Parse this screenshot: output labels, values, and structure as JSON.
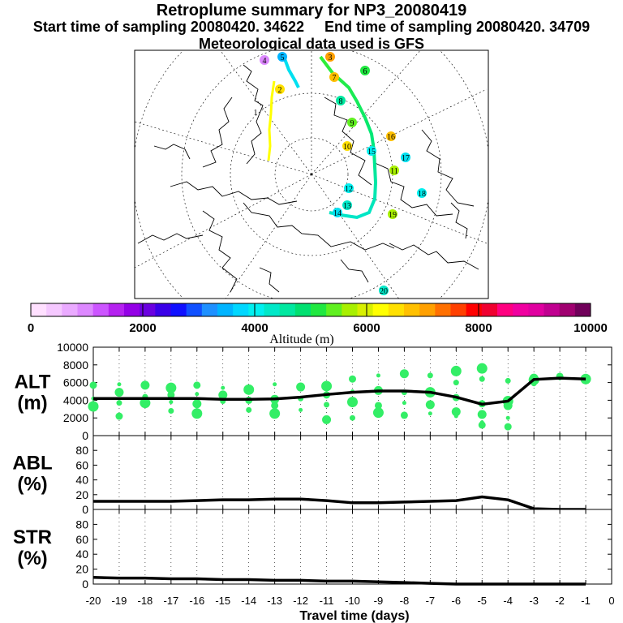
{
  "header": {
    "title": "Retroplume summary for NP3_20080419",
    "start_label": "Start time of sampling 20080420. 34622",
    "end_label": "End time of sampling 20080420. 34709",
    "met_label": "Meteorological data used is GFS"
  },
  "colorbar": {
    "label": "Altitude (m)",
    "ticks": [
      "0",
      "2000",
      "4000",
      "6000",
      "8000",
      "10000"
    ],
    "range": [
      0,
      10000
    ],
    "colors": [
      "#ffe0ff",
      "#f5c8ff",
      "#eaaaff",
      "#dd88ff",
      "#cc55ff",
      "#b522f0",
      "#9400e6",
      "#6a00e0",
      "#3a00e8",
      "#1010ff",
      "#1050ff",
      "#1e90ff",
      "#00b4ff",
      "#00d7ff",
      "#00f0f0",
      "#00e8c8",
      "#00e8a0",
      "#00e070",
      "#20e840",
      "#60f020",
      "#a8f000",
      "#d8f000",
      "#ffff00",
      "#ffe000",
      "#ffc000",
      "#ffa000",
      "#ff7000",
      "#ff4000",
      "#ff0000",
      "#f00030",
      "#ff0080",
      "#f000a0",
      "#e000a0",
      "#c00090",
      "#a00070",
      "#70005a"
    ]
  },
  "map": {
    "day_labels": [
      "1",
      "2",
      "3",
      "4",
      "5",
      "6",
      "7",
      "8",
      "9",
      "10",
      "11",
      "12",
      "13",
      "14",
      "15",
      "16",
      "17",
      "18",
      "19",
      "20"
    ],
    "trajectory_colors": [
      "#ffff00",
      "#00e0f0",
      "#00e878",
      "#33ee33",
      "#00e6c8"
    ]
  },
  "chart_data": [
    {
      "type": "scatter",
      "name": "ALT",
      "ylabel": "ALT (m)",
      "ylabel_lines": [
        "ALT",
        "(m)"
      ],
      "ylim": [
        0,
        10000
      ],
      "yticks": [
        "0",
        "2000",
        "4000",
        "6000",
        "8000",
        "10000"
      ],
      "x": [
        -20,
        -19,
        -18,
        -17,
        -16,
        -15,
        -14,
        -13,
        -12,
        -11,
        -10,
        -9,
        -8,
        -7,
        -6,
        -5,
        -4,
        -3,
        -2,
        -1
      ],
      "mean_line": [
        4200,
        4200,
        4200,
        4200,
        4200,
        4100,
        4100,
        4150,
        4350,
        4650,
        4900,
        5050,
        5050,
        4900,
        4350,
        3550,
        3900,
        6350,
        6500,
        6400
      ],
      "cluster_points": [
        [
          -20,
          4200
        ],
        [
          -20,
          5700
        ],
        [
          -20,
          3300
        ],
        [
          -19,
          3700
        ],
        [
          -19,
          4900
        ],
        [
          -19,
          5800
        ],
        [
          -19,
          2200
        ],
        [
          -18,
          3700
        ],
        [
          -18,
          4400
        ],
        [
          -18,
          5700
        ],
        [
          -17,
          3800
        ],
        [
          -17,
          4600
        ],
        [
          -17,
          5400
        ],
        [
          -17,
          2800
        ],
        [
          -16,
          3600
        ],
        [
          -16,
          4700
        ],
        [
          -16,
          5700
        ],
        [
          -16,
          2500
        ],
        [
          -15,
          3900
        ],
        [
          -15,
          4600
        ],
        [
          -15,
          5400
        ],
        [
          -14,
          4000
        ],
        [
          -14,
          5200
        ],
        [
          -14,
          2900
        ],
        [
          -13,
          4100
        ],
        [
          -13,
          5800
        ],
        [
          -13,
          3400
        ],
        [
          -13,
          2500
        ],
        [
          -12,
          4200
        ],
        [
          -12,
          5500
        ],
        [
          -12,
          2900
        ],
        [
          -11,
          4600
        ],
        [
          -11,
          5600
        ],
        [
          -11,
          3500
        ],
        [
          -11,
          1800
        ],
        [
          -10,
          5000
        ],
        [
          -10,
          6400
        ],
        [
          -10,
          3800
        ],
        [
          -10,
          2000
        ],
        [
          -9,
          5100
        ],
        [
          -9,
          6800
        ],
        [
          -9,
          3400
        ],
        [
          -9,
          2600
        ],
        [
          -8,
          4900
        ],
        [
          -8,
          7000
        ],
        [
          -8,
          3700
        ],
        [
          -8,
          2300
        ],
        [
          -7,
          4900
        ],
        [
          -7,
          6800
        ],
        [
          -7,
          3500
        ],
        [
          -7,
          2500
        ],
        [
          -6,
          4300
        ],
        [
          -6,
          7300
        ],
        [
          -6,
          6000
        ],
        [
          -6,
          2700
        ],
        [
          -6,
          2200
        ],
        [
          -5,
          3600
        ],
        [
          -5,
          7600
        ],
        [
          -5,
          6400
        ],
        [
          -5,
          2400
        ],
        [
          -5,
          1500
        ],
        [
          -5,
          1200
        ],
        [
          -4,
          3900
        ],
        [
          -4,
          6200
        ],
        [
          -4,
          3400
        ],
        [
          -4,
          2000
        ],
        [
          -4,
          1000
        ],
        [
          -3,
          6300
        ],
        [
          -3,
          5900
        ],
        [
          -3,
          6500
        ],
        [
          -2,
          6500
        ],
        [
          -2,
          6700
        ],
        [
          -1,
          6400
        ],
        [
          -1,
          6300
        ]
      ]
    },
    {
      "type": "line",
      "name": "ABL",
      "ylabel": "ABL (%)",
      "ylabel_lines": [
        "ABL",
        "(%)"
      ],
      "ylim": [
        0,
        100
      ],
      "yticks": [
        "0",
        "20",
        "40",
        "60",
        "80"
      ],
      "x": [
        -20,
        -19,
        -18,
        -17,
        -16,
        -15,
        -14,
        -13,
        -12,
        -11,
        -10,
        -9,
        -8,
        -7,
        -6,
        -5,
        -4,
        -3,
        -2,
        -1
      ],
      "values": [
        11,
        11,
        11,
        11,
        12,
        13,
        13,
        14,
        14,
        12,
        9,
        9,
        10,
        11,
        12,
        17,
        13,
        1,
        0,
        0
      ]
    },
    {
      "type": "line",
      "name": "STR",
      "ylabel": "STR (%)",
      "ylabel_lines": [
        "STR",
        "(%)"
      ],
      "ylim": [
        0,
        100
      ],
      "yticks": [
        "0",
        "20",
        "40",
        "60",
        "80"
      ],
      "x": [
        -20,
        -19,
        -18,
        -17,
        -16,
        -15,
        -14,
        -13,
        -12,
        -11,
        -10,
        -9,
        -8,
        -7,
        -6,
        -5,
        -4,
        -3,
        -2,
        -1
      ],
      "values": [
        9,
        8,
        8,
        7,
        7,
        6,
        6,
        5,
        5,
        4,
        4,
        3,
        2,
        1,
        0,
        0,
        0,
        0,
        0,
        0
      ]
    }
  ],
  "x_axis": {
    "label": "Travel time (days)",
    "xlim": [
      -20,
      0
    ],
    "ticks": [
      "-20",
      "-19",
      "-18",
      "-17",
      "-16",
      "-15",
      "-14",
      "-13",
      "-12",
      "-11",
      "-10",
      "-9",
      "-8",
      "-7",
      "-6",
      "-5",
      "-4",
      "-3",
      "-2",
      "-1",
      "0"
    ]
  }
}
